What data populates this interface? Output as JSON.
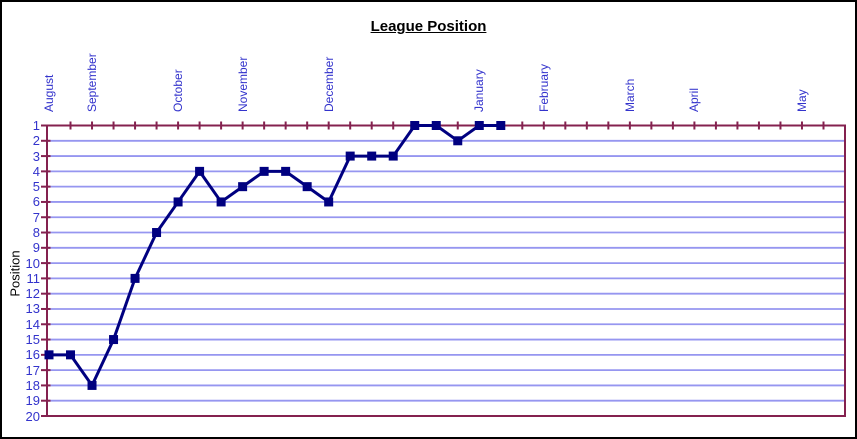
{
  "colors": {
    "background": "#FFFFFF",
    "outer_border": "#000000",
    "axis": "#84214F",
    "gridline": "#9696F0",
    "series": "#000080",
    "tick_label": "#3333CC",
    "title_text": "#000000"
  },
  "chart_data": {
    "type": "line",
    "title": "League Position",
    "xlabel": "",
    "ylabel": "Position",
    "grid": true,
    "legend": "none",
    "y_axis": {
      "min": 1,
      "max": 20,
      "step": 1,
      "reversed": true,
      "tick_labels": [
        "1",
        "2",
        "3",
        "4",
        "5",
        "6",
        "7",
        "8",
        "9",
        "10",
        "11",
        "12",
        "13",
        "14",
        "15",
        "16",
        "17",
        "18",
        "19",
        "20"
      ]
    },
    "x_axis": {
      "n_slots": 38,
      "labels": [
        {
          "text": "August",
          "slot": 0
        },
        {
          "text": "September",
          "slot": 2
        },
        {
          "text": "October",
          "slot": 6
        },
        {
          "text": "November",
          "slot": 9
        },
        {
          "text": "December",
          "slot": 13
        },
        {
          "text": "January",
          "slot": 20
        },
        {
          "text": "February",
          "slot": 23
        },
        {
          "text": "March",
          "slot": 27
        },
        {
          "text": "April",
          "slot": 30
        },
        {
          "text": "May",
          "slot": 35
        }
      ]
    },
    "series": [
      {
        "name": "League Position",
        "values": [
          16,
          16,
          18,
          15,
          11,
          8,
          6,
          4,
          6,
          5,
          4,
          4,
          5,
          6,
          3,
          3,
          3,
          1,
          1,
          2,
          1,
          1
        ]
      }
    ]
  }
}
